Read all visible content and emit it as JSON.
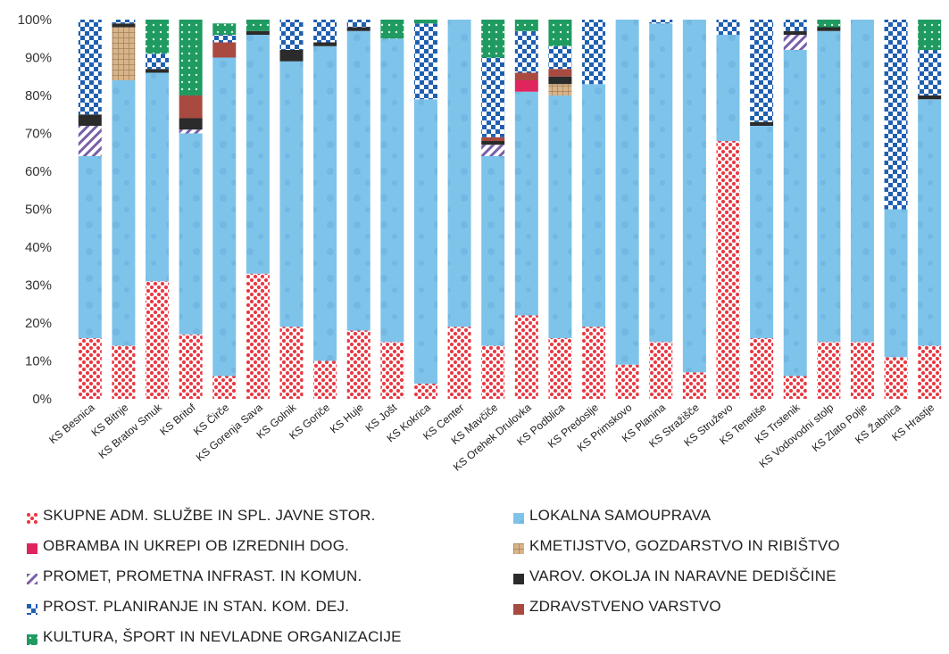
{
  "chart_data": {
    "type": "bar",
    "stacked": true,
    "yticks": [
      "0%",
      "10%",
      "20%",
      "30%",
      "40%",
      "50%",
      "60%",
      "70%",
      "80%",
      "90%",
      "100%"
    ],
    "ylim": [
      0,
      100
    ],
    "categories": [
      "KS Besnica",
      "KS Bitnje",
      "KS Bratov Smuk",
      "KS Britof",
      "KS Čirče",
      "KS Gorenja Sava",
      "KS Golnik",
      "KS Goriče",
      "KS Huje",
      "KS Jošt",
      "KS Kokrica",
      "KS Center",
      "KS Mavčiče",
      "KS Orehek Drulovka",
      "KS Podblica",
      "KS Predoslje",
      "KS Primskovo",
      "KS Planina",
      "KS Stražišče",
      "KS Struževo",
      "KS Tenetiše",
      "KS Trstenik",
      "KS Vodovodni stolp",
      "KS Zlato Polje",
      "KS Žabnica",
      "KS Hrastje"
    ],
    "series": [
      {
        "name": "SKUPNE ADM. SLUŽBE IN SPL. JAVNE STOR.",
        "color": "#e83a44",
        "pattern": "dots-red",
        "values": [
          16,
          14,
          31,
          17,
          6,
          33,
          19,
          10,
          18,
          15,
          4,
          19,
          14,
          22,
          16,
          19,
          9,
          15,
          7,
          68,
          16,
          6,
          15,
          15,
          11,
          14
        ]
      },
      {
        "name": "LOKALNA SAMOUPRAVA",
        "color": "#7ec3ea",
        "pattern": "solid-blue",
        "values": [
          48,
          70,
          55,
          53,
          84,
          63,
          70,
          83,
          79,
          80,
          75,
          81,
          50,
          59,
          64,
          64,
          91,
          84,
          93,
          28,
          56,
          86,
          82,
          85,
          39,
          65
        ]
      },
      {
        "name": "OBRAMBA IN UKREPI OB IZREDNIH DOG.",
        "color": "#e0245e",
        "pattern": "solid",
        "values": [
          0,
          0,
          0,
          0,
          0,
          0,
          0,
          0,
          0,
          0,
          0,
          0,
          0,
          3,
          0,
          0,
          0,
          0,
          0,
          0,
          0,
          0,
          0,
          0,
          0,
          0
        ]
      },
      {
        "name": "KMETIJSTVO, GOZDARSTVO IN RIBIŠTVO",
        "color": "#c8a07a",
        "pattern": "grid-tan",
        "values": [
          0,
          14,
          0,
          0,
          0,
          0,
          0,
          0,
          0,
          0,
          0,
          0,
          0,
          0,
          3,
          0,
          0,
          0,
          0,
          0,
          0,
          0,
          0,
          0,
          0,
          0
        ]
      },
      {
        "name": "PROMET, PROMETNA INFRAST. IN KOMUN.",
        "color": "#7a5ea8",
        "pattern": "diag",
        "values": [
          8,
          0,
          0,
          1,
          0,
          0,
          0,
          0,
          0,
          0,
          0,
          0,
          3,
          0,
          0,
          0,
          0,
          0,
          0,
          0,
          0,
          4,
          0,
          0,
          0,
          0
        ]
      },
      {
        "name": "VAROV. OKOLJA IN NARAVNE DEDIŠČINE",
        "color": "#2b2b2b",
        "pattern": "solid",
        "values": [
          3,
          1,
          1,
          3,
          0,
          1,
          3,
          1,
          1,
          0,
          0,
          0,
          1,
          0,
          2,
          0,
          1,
          0,
          0,
          0,
          1,
          1,
          1,
          0,
          0,
          1
        ]
      },
      {
        "name": "ZDRAVSTVENO VARSTVO",
        "color": "#a84a40",
        "pattern": "solid",
        "values": [
          0,
          0,
          0,
          6,
          4,
          0,
          0,
          0,
          0,
          0,
          0,
          0,
          1,
          2,
          2,
          0,
          0,
          0,
          0,
          0,
          0,
          0,
          0,
          0,
          0,
          0
        ]
      },
      {
        "name": "PROST. PLANIRANJE IN STAN. KOM. DEJ.",
        "color": "#1f5fb0",
        "pattern": "checker",
        "values": [
          25,
          1,
          4,
          0,
          2,
          0,
          8,
          6,
          2,
          0,
          20,
          0,
          21,
          11,
          6,
          17,
          0,
          1,
          0,
          4,
          27,
          3,
          0,
          0,
          50,
          12
        ]
      },
      {
        "name": "KULTURA, ŠPORT IN NEVLADNE ORGANIZACIJE",
        "color": "#18a068",
        "pattern": "dots-green",
        "values": [
          0,
          0,
          9,
          20,
          3,
          3,
          0,
          0,
          0,
          5,
          1,
          0,
          10,
          3,
          7,
          0,
          0,
          0,
          0,
          0,
          0,
          0,
          2,
          0,
          0,
          8
        ]
      }
    ],
    "legend": [
      {
        "label": "SKUPNE ADM. SLUŽBE IN SPL. JAVNE STOR.",
        "color": "#e83a44",
        "icon": "dots-red"
      },
      {
        "label": "LOKALNA SAMOUPRAVA",
        "color": "#7ec3ea",
        "icon": "solid-blue"
      },
      {
        "label": "OBRAMBA IN UKREPI OB IZREDNIH DOG.",
        "color": "#e0245e",
        "icon": "solid"
      },
      {
        "label": "KMETIJSTVO, GOZDARSTVO IN RIBIŠTVO",
        "color": "#c8a07a",
        "icon": "grid-tan"
      },
      {
        "label": "PROMET, PROMETNA INFRAST. IN KOMUN.",
        "color": "#7a5ea8",
        "icon": "diag"
      },
      {
        "label": "VAROV. OKOLJA IN NARAVNE DEDIŠČINE",
        "color": "#2b2b2b",
        "icon": "solid"
      },
      {
        "label": "PROST. PLANIRANJE IN STAN. KOM. DEJ.",
        "color": "#1f5fb0",
        "icon": "checker"
      },
      {
        "label": "ZDRAVSTVENO VARSTVO",
        "color": "#a84a40",
        "icon": "solid"
      },
      {
        "label": "KULTURA, ŠPORT IN NEVLADNE ORGANIZACIJE",
        "color": "#18a068",
        "icon": "dots-green"
      }
    ],
    "legend_placement": "bottom",
    "grid": false
  }
}
